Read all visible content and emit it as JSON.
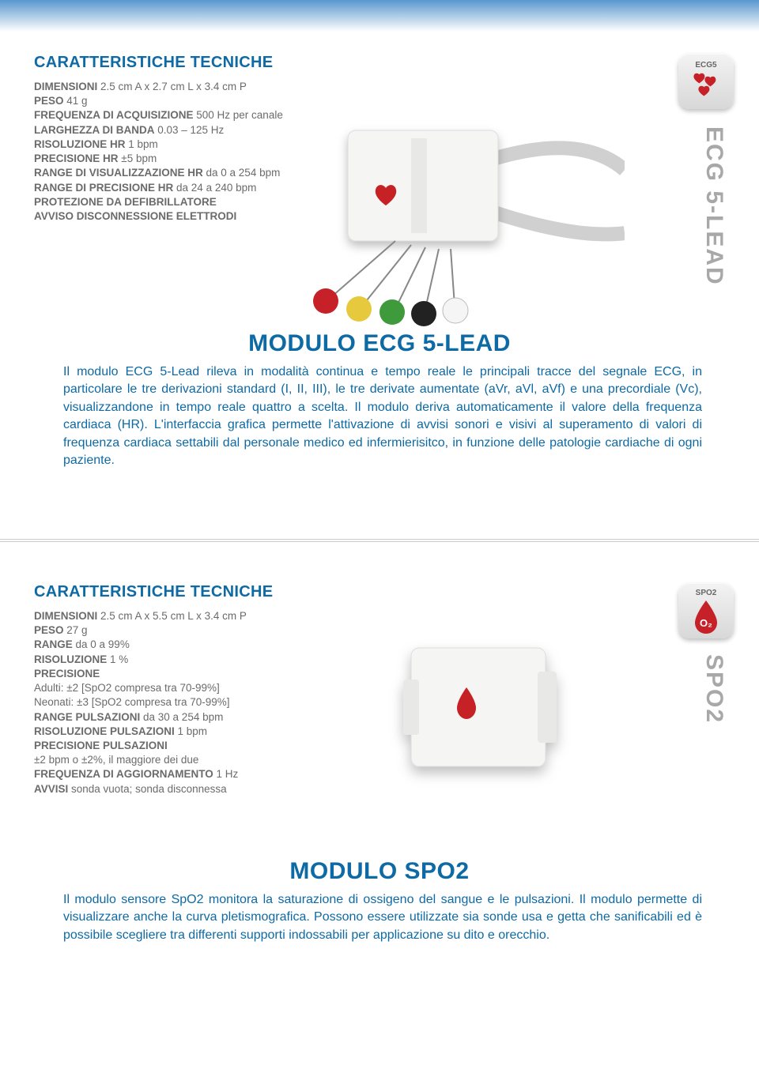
{
  "colors": {
    "accent": "#0d6aa5",
    "text_muted": "#6b6b6b",
    "side_label": "#a8a8a8",
    "top_gradient": "#5898ce",
    "badge_bg_top": "#f3f3f3",
    "badge_bg_bottom": "#d8d8d8",
    "red": "#c62128",
    "green": "#3e9a3a",
    "yellow": "#e7c93d",
    "black": "#222222",
    "white_dot": "#f5f5f5"
  },
  "ecg": {
    "specs_title": "CARATTERISTICHE TECNICHE",
    "lines": [
      {
        "label": "DIMENSIONI",
        "value": " 2.5 cm A x 2.7 cm L x 3.4 cm P"
      },
      {
        "label": "PESO",
        "value": " 41 g"
      },
      {
        "label": "FREQUENZA DI ACQUISIZIONE",
        "value": " 500 Hz per canale"
      },
      {
        "label": "LARGHEZZA DI BANDA",
        "value": " 0.03 – 125 Hz"
      },
      {
        "label": "RISOLUZIONE HR",
        "value": " 1 bpm"
      },
      {
        "label": "PRECISIONE HR",
        "value": " ±5 bpm"
      },
      {
        "label": "RANGE DI VISUALIZZAZIONE HR",
        "value": " da 0 a 254 bpm"
      },
      {
        "label": "RANGE DI PRECISIONE HR",
        "value": " da 24 a 240 bpm"
      },
      {
        "label": "PROTEZIONE DA DEFIBRILLATORE",
        "value": ""
      },
      {
        "label": "AVVISO DISCONNESSIONE ELETTRODI",
        "value": ""
      }
    ],
    "badge_label": "ECG5",
    "side_label": "ECG 5-LEAD",
    "module_title": "MODULO ECG 5-LEAD",
    "module_body": "Il modulo ECG 5-Lead rileva in modalità continua e tempo reale le principali tracce del segnale ECG, in particolare le tre derivazioni standard (I, II, III), le tre derivate aumentate (aVr, aVl, aVf) e una precordiale (Vc), visualizzandone in tempo reale quattro a scelta. Il modulo deriva automaticamente il valore della frequenza cardiaca (HR). L'interfaccia grafica permette l'attivazione di avvisi sonori e visivi al superamento di valori di frequenza cardiaca settabili dal personale medico ed infermierisitco, in funzione delle patologie cardiache di ogni paziente."
  },
  "spo2": {
    "specs_title": "CARATTERISTICHE TECNICHE",
    "lines": [
      {
        "label": "DIMENSIONI",
        "value": " 2.5 cm A x 5.5 cm L x 3.4 cm P"
      },
      {
        "label": "PESO",
        "value": " 27 g"
      },
      {
        "label": "RANGE",
        "value": " da 0 a 99%"
      },
      {
        "label": "RISOLUZIONE",
        "value": " 1 %"
      },
      {
        "label": "PRECISIONE",
        "value": ""
      },
      {
        "label": "",
        "value": "Adulti: ±2 [SpO2 compresa tra 70-99%]"
      },
      {
        "label": "",
        "value": "Neonati: ±3 [SpO2 compresa tra 70-99%]"
      },
      {
        "label": "RANGE PULSAZIONI",
        "value": " da 30 a 254 bpm"
      },
      {
        "label": "RISOLUZIONE PULSAZIONI",
        "value": " 1 bpm"
      },
      {
        "label": "PRECISIONE PULSAZIONI",
        "value": ""
      },
      {
        "label": "",
        "value": "±2 bpm o ±2%, il maggiore dei due"
      },
      {
        "label": "FREQUENZA DI AGGIORNAMENTO",
        "value": " 1 Hz"
      },
      {
        "label": "AVVISI",
        "value": " sonda vuota; sonda disconnessa"
      }
    ],
    "badge_label": "SPO2",
    "badge_icon_text": "O₂",
    "side_label": "SPO2",
    "module_title": "MODULO SPO2",
    "module_body": "Il modulo sensore SpO2 monitora la saturazione di ossigeno del sangue e le pulsazioni. Il modulo permette di visualizzare anche la curva pletismografica. Possono essere utilizzate sia sonde usa e getta che sanificabili ed è possibile scegliere tra differenti supporti indossabili per applicazione su dito e orecchio."
  }
}
